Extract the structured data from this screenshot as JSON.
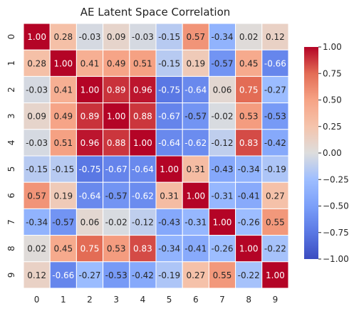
{
  "chart_data": {
    "type": "heatmap",
    "title": "AE Latent Space Correlation",
    "xlabel": "",
    "ylabel": "",
    "x_categories": [
      "0",
      "1",
      "2",
      "3",
      "4",
      "5",
      "6",
      "7",
      "8",
      "9"
    ],
    "y_categories": [
      "0",
      "1",
      "2",
      "3",
      "4",
      "5",
      "6",
      "7",
      "8",
      "9"
    ],
    "values": [
      [
        1.0,
        0.28,
        -0.03,
        0.09,
        -0.03,
        -0.15,
        0.57,
        -0.34,
        0.02,
        0.12
      ],
      [
        0.28,
        1.0,
        0.41,
        0.49,
        0.51,
        -0.15,
        0.19,
        -0.57,
        0.45,
        -0.66
      ],
      [
        -0.03,
        0.41,
        1.0,
        0.89,
        0.96,
        -0.75,
        -0.64,
        0.06,
        0.75,
        -0.27
      ],
      [
        0.09,
        0.49,
        0.89,
        1.0,
        0.88,
        -0.67,
        -0.57,
        -0.02,
        0.53,
        -0.53
      ],
      [
        -0.03,
        0.51,
        0.96,
        0.88,
        1.0,
        -0.64,
        -0.62,
        -0.12,
        0.83,
        -0.42
      ],
      [
        -0.15,
        -0.15,
        -0.75,
        -0.67,
        -0.64,
        1.0,
        0.31,
        -0.43,
        -0.34,
        -0.19
      ],
      [
        0.57,
        0.19,
        -0.64,
        -0.57,
        -0.62,
        0.31,
        1.0,
        -0.31,
        -0.41,
        0.27
      ],
      [
        -0.34,
        -0.57,
        0.06,
        -0.02,
        -0.12,
        -0.43,
        -0.31,
        1.0,
        -0.26,
        0.55
      ],
      [
        0.02,
        0.45,
        0.75,
        0.53,
        0.83,
        -0.34,
        -0.41,
        -0.26,
        1.0,
        -0.22
      ],
      [
        0.12,
        -0.66,
        -0.27,
        -0.53,
        -0.42,
        -0.19,
        0.27,
        0.55,
        -0.22,
        1.0
      ]
    ],
    "value_format": "2 decimals",
    "colormap": "coolwarm",
    "colormap_stops": [
      "#3b4cc0",
      "#dddddd",
      "#b40426"
    ],
    "vmin": -1.0,
    "vmax": 1.0,
    "colorbar": {
      "ticks": [
        1.0,
        0.75,
        0.5,
        0.25,
        0.0,
        -0.25,
        -0.5,
        -0.75,
        -1.0
      ],
      "tick_labels": [
        "1.00",
        "0.75",
        "0.50",
        "0.25",
        "0.00",
        "−0.25",
        "−0.50",
        "−0.75",
        "−1.00"
      ],
      "position": "right"
    },
    "cell_border_color": "#ffffff",
    "grid": false
  }
}
